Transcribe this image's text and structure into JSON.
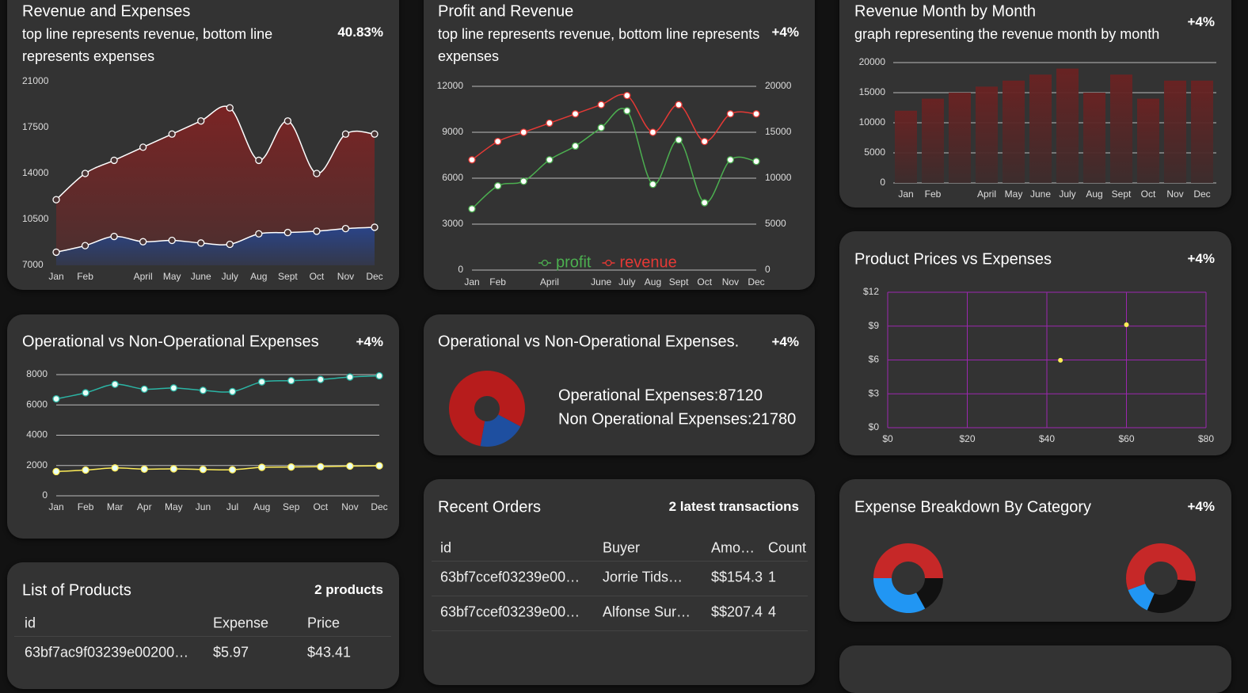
{
  "chart_data": [
    {
      "type": "area",
      "title": "Revenue and Expenses",
      "subtitle": "top line represents revenue, bottom line represents expenses",
      "badge": "40.83%",
      "categories": [
        "Jan",
        "Feb",
        null,
        "April",
        "May",
        "June",
        "July",
        "Aug",
        "Sept",
        "Oct",
        "Nov",
        "Dec"
      ],
      "series": [
        {
          "color": "#ffffff",
          "values": [
            12000,
            14000,
            15000,
            16000,
            17000,
            18000,
            19000,
            15000,
            18000,
            14000,
            17000,
            17000
          ]
        },
        {
          "color": "#ffffff",
          "values": [
            8000,
            8500,
            9200,
            8800,
            8900,
            8700,
            8600,
            9400,
            9500,
            9600,
            9800,
            9900
          ]
        }
      ],
      "ylim": [
        7000,
        21000
      ],
      "yticks": [
        7000,
        10500,
        14000,
        17500,
        21000
      ]
    },
    {
      "type": "line",
      "title": "Profit and Revenue",
      "subtitle": "top line represents revenue, bottom line represents expenses",
      "badge": "+4%",
      "categories": [
        "Jan",
        "Feb",
        null,
        "April",
        null,
        "June",
        "July",
        "Aug",
        "Sept",
        "Oct",
        "Nov",
        "Dec"
      ],
      "series": [
        {
          "name": "profit",
          "color": "#4caf50",
          "values": [
            4000,
            5500,
            5800,
            7200,
            8100,
            9300,
            10400,
            5600,
            8500,
            4400,
            7200,
            7100
          ]
        },
        {
          "name": "revenue",
          "color": "#e53935",
          "axis": "y2",
          "values": [
            12000,
            14000,
            15000,
            16000,
            17000,
            18000,
            19000,
            15000,
            18000,
            14000,
            17000,
            17000
          ]
        }
      ],
      "ylim": [
        0,
        12000
      ],
      "yticks": [
        0,
        3000,
        6000,
        9000,
        12000
      ],
      "y2lim": [
        0,
        20000
      ],
      "y2ticks": [
        0,
        5000,
        10000,
        15000,
        20000
      ],
      "grid": true,
      "legend": "bottom"
    },
    {
      "type": "bar",
      "title": "Revenue Month by Month",
      "subtitle": "graph representing the revenue month by month",
      "badge": "+4%",
      "categories": [
        "Jan",
        "Feb",
        null,
        "April",
        "May",
        "June",
        "July",
        "Aug",
        "Sept",
        "Oct",
        "Nov",
        "Dec"
      ],
      "values": [
        12000,
        14000,
        15000,
        16000,
        17000,
        18000,
        19000,
        15000,
        18000,
        14000,
        17000,
        17000
      ],
      "color": "#6b2222",
      "ylim": [
        0,
        20000
      ],
      "yticks": [
        0,
        5000,
        10000,
        15000,
        20000
      ],
      "grid": true
    },
    {
      "type": "line",
      "title": "Operational vs Non-Operational Expenses",
      "badge": "+4%",
      "categories": [
        "Jan",
        "Feb",
        "Mar",
        "Apr",
        "May",
        "Jun",
        "Jul",
        "Aug",
        "Sep",
        "Oct",
        "Nov",
        "Dec"
      ],
      "series": [
        {
          "color": "#2bb5a5",
          "values": [
            6400,
            6800,
            7360,
            7040,
            7120,
            6960,
            6880,
            7520,
            7600,
            7680,
            7840,
            7920
          ]
        },
        {
          "color": "#ffee58",
          "values": [
            1600,
            1700,
            1840,
            1760,
            1780,
            1740,
            1720,
            1880,
            1900,
            1920,
            1960,
            1980
          ]
        }
      ],
      "ylim": [
        0,
        8000
      ],
      "yticks": [
        0,
        2000,
        4000,
        6000,
        8000
      ],
      "grid": true
    },
    {
      "type": "donut",
      "title": "Operational vs Non-Operational Expenses.",
      "badge": "+4%",
      "values": [
        87120,
        21780
      ],
      "value_labels": [
        "Operational Expenses:87120",
        "Non Operational Expenses:21780"
      ],
      "colors": [
        "#b71c1c",
        "#1e4fa0"
      ]
    },
    {
      "type": "scatter",
      "title": "Product Prices vs Expenses",
      "badge": "+4%",
      "x": [
        43.41,
        60
      ],
      "values": [
        5.97,
        9.12
      ],
      "color": "#ffee58",
      "xlim": [
        0,
        80
      ],
      "xticks": [
        {
          "value": 0,
          "label": "$0"
        },
        {
          "value": 20,
          "label": "$20"
        },
        {
          "value": 40,
          "label": "$40"
        },
        {
          "value": 60,
          "label": "$60"
        },
        {
          "value": 80,
          "label": "$80"
        }
      ],
      "ylim": [
        0,
        12
      ],
      "yticks": [
        {
          "value": 0,
          "label": "$0"
        },
        {
          "value": 3,
          "label": "$3"
        },
        {
          "value": 6,
          "label": "$6"
        },
        {
          "value": 9,
          "label": "$9"
        },
        {
          "value": 12,
          "label": "$12"
        }
      ],
      "grid": true,
      "grid_color": "#9c27b0"
    },
    {
      "type": "donut",
      "title": "Expense Breakdown By Category",
      "badge": "+4%",
      "colors": [
        "#c62828",
        "#111111",
        "#2196f3"
      ],
      "series": [
        {
          "values": [
            50,
            17,
            33
          ]
        },
        {
          "values": [
            57,
            30,
            13
          ]
        }
      ]
    }
  ],
  "products": {
    "title": "List of Products",
    "badge": "2 products",
    "columns": [
      "id",
      "Expense",
      "Price"
    ],
    "rows": [
      [
        "63bf7ac9f03239e00200…",
        "$5.97",
        "$43.41"
      ]
    ]
  },
  "orders": {
    "title": "Recent Orders",
    "badge": "2 latest transactions",
    "columns": [
      "id",
      "Buyer",
      "Amo…",
      "Count"
    ],
    "rows": [
      [
        "63bf7ccef03239e00…",
        "Jorrie Tids…",
        "$$154.3",
        1
      ],
      [
        "63bf7ccef03239e00…",
        "Alfonse Sur…",
        "$$207.4",
        4
      ]
    ]
  }
}
